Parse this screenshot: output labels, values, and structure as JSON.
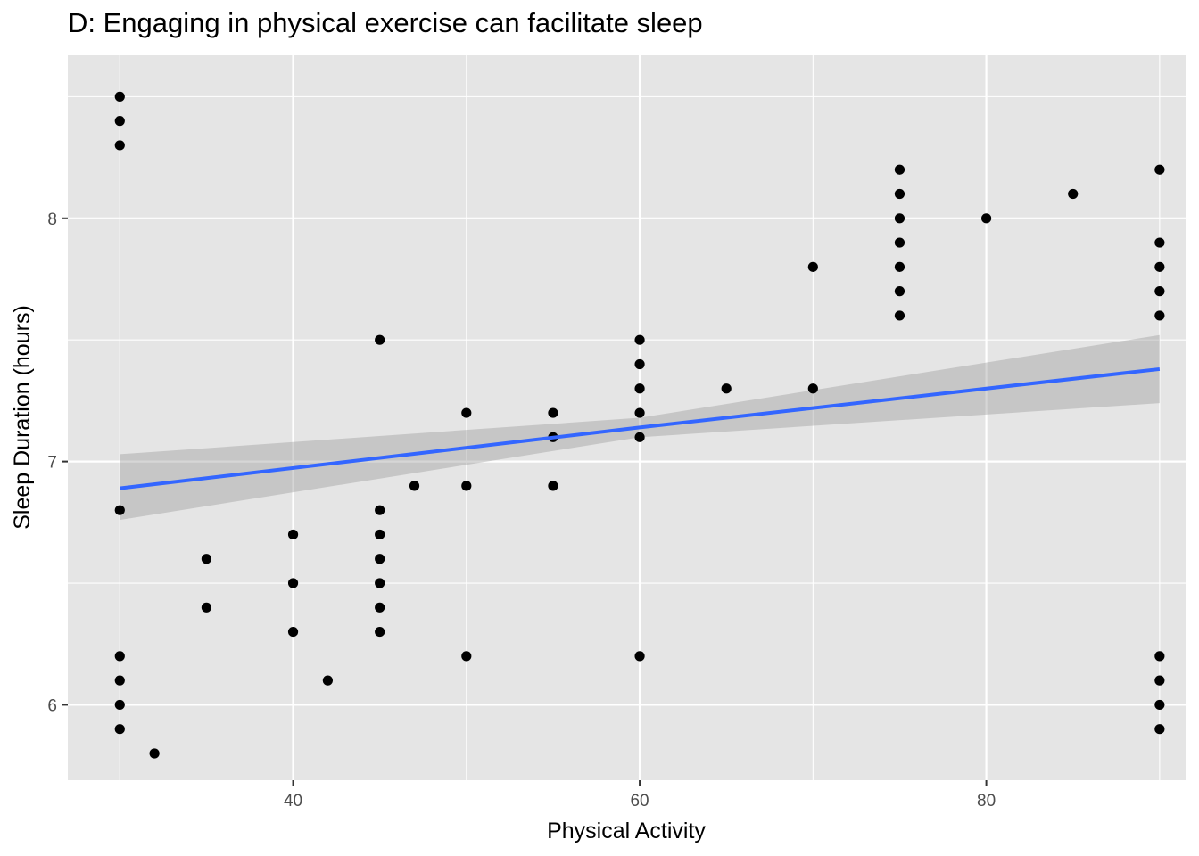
{
  "chart_data": {
    "type": "scatter",
    "title": "D: Engaging in physical exercise can facilitate sleep",
    "xlabel": "Physical Activity",
    "ylabel": "Sleep Duration (hours)",
    "xlim": [
      27,
      91.5
    ],
    "ylim": [
      5.69,
      8.67
    ],
    "x_ticks": [
      40,
      60,
      80
    ],
    "y_ticks": [
      6,
      7,
      8
    ],
    "grid": true,
    "colors": {
      "panel": "#e5e5e5",
      "grid": "#ffffff",
      "point": "#000000",
      "fit_line": "#3366ff",
      "ribbon": "#999999"
    },
    "points": [
      {
        "x": 30,
        "y": 8.5
      },
      {
        "x": 30,
        "y": 8.4
      },
      {
        "x": 30,
        "y": 8.3
      },
      {
        "x": 30,
        "y": 6.8
      },
      {
        "x": 30,
        "y": 6.2
      },
      {
        "x": 30,
        "y": 6.1
      },
      {
        "x": 30,
        "y": 6.0
      },
      {
        "x": 30,
        "y": 5.9
      },
      {
        "x": 32,
        "y": 5.8
      },
      {
        "x": 35,
        "y": 6.6
      },
      {
        "x": 35,
        "y": 6.4
      },
      {
        "x": 40,
        "y": 6.7
      },
      {
        "x": 40,
        "y": 6.5
      },
      {
        "x": 40,
        "y": 6.3
      },
      {
        "x": 42,
        "y": 6.1
      },
      {
        "x": 45,
        "y": 7.5
      },
      {
        "x": 45,
        "y": 6.8
      },
      {
        "x": 45,
        "y": 6.7
      },
      {
        "x": 45,
        "y": 6.6
      },
      {
        "x": 45,
        "y": 6.5
      },
      {
        "x": 45,
        "y": 6.4
      },
      {
        "x": 45,
        "y": 6.3
      },
      {
        "x": 47,
        "y": 6.9
      },
      {
        "x": 50,
        "y": 7.2
      },
      {
        "x": 50,
        "y": 6.9
      },
      {
        "x": 50,
        "y": 6.2
      },
      {
        "x": 55,
        "y": 7.2
      },
      {
        "x": 55,
        "y": 7.1
      },
      {
        "x": 55,
        "y": 6.9
      },
      {
        "x": 60,
        "y": 7.5
      },
      {
        "x": 60,
        "y": 7.4
      },
      {
        "x": 60,
        "y": 7.3
      },
      {
        "x": 60,
        "y": 7.2
      },
      {
        "x": 60,
        "y": 7.1
      },
      {
        "x": 60,
        "y": 6.2
      },
      {
        "x": 65,
        "y": 7.3
      },
      {
        "x": 70,
        "y": 7.8
      },
      {
        "x": 70,
        "y": 7.3
      },
      {
        "x": 75,
        "y": 8.2
      },
      {
        "x": 75,
        "y": 8.1
      },
      {
        "x": 75,
        "y": 8.0
      },
      {
        "x": 75,
        "y": 7.9
      },
      {
        "x": 75,
        "y": 7.8
      },
      {
        "x": 75,
        "y": 7.7
      },
      {
        "x": 75,
        "y": 7.6
      },
      {
        "x": 80,
        "y": 8.0
      },
      {
        "x": 85,
        "y": 8.1
      },
      {
        "x": 90,
        "y": 8.2
      },
      {
        "x": 90,
        "y": 7.9
      },
      {
        "x": 90,
        "y": 7.8
      },
      {
        "x": 90,
        "y": 7.7
      },
      {
        "x": 90,
        "y": 7.6
      },
      {
        "x": 90,
        "y": 6.2
      },
      {
        "x": 90,
        "y": 6.1
      },
      {
        "x": 90,
        "y": 6.0
      },
      {
        "x": 90,
        "y": 5.9
      }
    ],
    "smooth": {
      "method": "linear",
      "x": [
        30,
        60,
        90
      ],
      "y": [
        6.89,
        7.14,
        7.38
      ],
      "ci_low": [
        6.76,
        7.1,
        7.24
      ],
      "ci_high": [
        7.03,
        7.18,
        7.52
      ]
    }
  }
}
